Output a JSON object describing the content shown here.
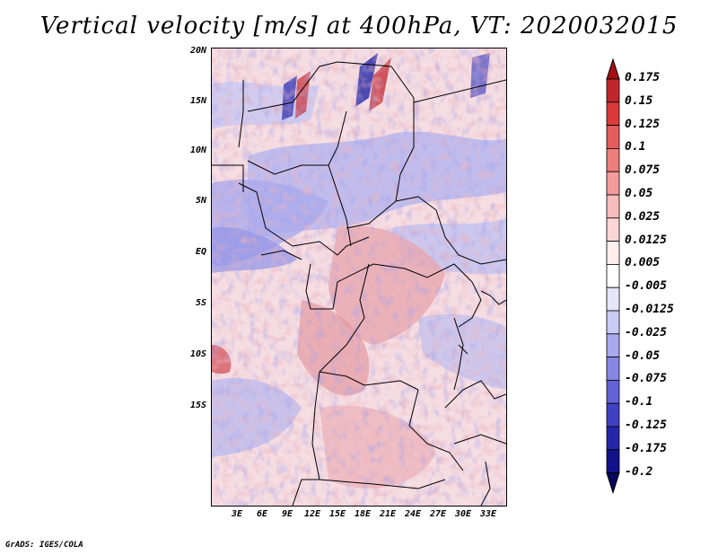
{
  "title": "Vertical velocity [m/s] at 400hPa, VT: 2020032015",
  "credit": "GrADS: IGES/COLA",
  "latitude_labels": [
    "20N",
    "15N",
    "10N",
    "5N",
    "EQ",
    "5S",
    "10S",
    "15S"
  ],
  "longitude_labels": [
    "3E",
    "6E",
    "9E",
    "12E",
    "15E",
    "18E",
    "21E",
    "24E",
    "27E",
    "30E",
    "33E"
  ],
  "colorbar": {
    "labels": [
      "0.175",
      "0.15",
      "0.125",
      "0.1",
      "0.075",
      "0.05",
      "0.025",
      "0.0125",
      "0.005",
      "-0.005",
      "-0.0125",
      "-0.025",
      "-0.05",
      "-0.075",
      "-0.1",
      "-0.125",
      "-0.175",
      "-0.2"
    ],
    "colors": [
      "#a50f15",
      "#c0272d",
      "#d93b3b",
      "#e45d5d",
      "#ec7e7e",
      "#f29c9c",
      "#f7bcbc",
      "#fad6d6",
      "#fdeeee",
      "#ffffff",
      "#e6e6fa",
      "#cacaf5",
      "#a9a9ee",
      "#8787e3",
      "#6363d6",
      "#4141c4",
      "#2626aa",
      "#12128a",
      "#06065e"
    ]
  },
  "colors": {
    "positive": "#c0272d",
    "negative": "#3c3cc8",
    "background": "#ffffff"
  }
}
